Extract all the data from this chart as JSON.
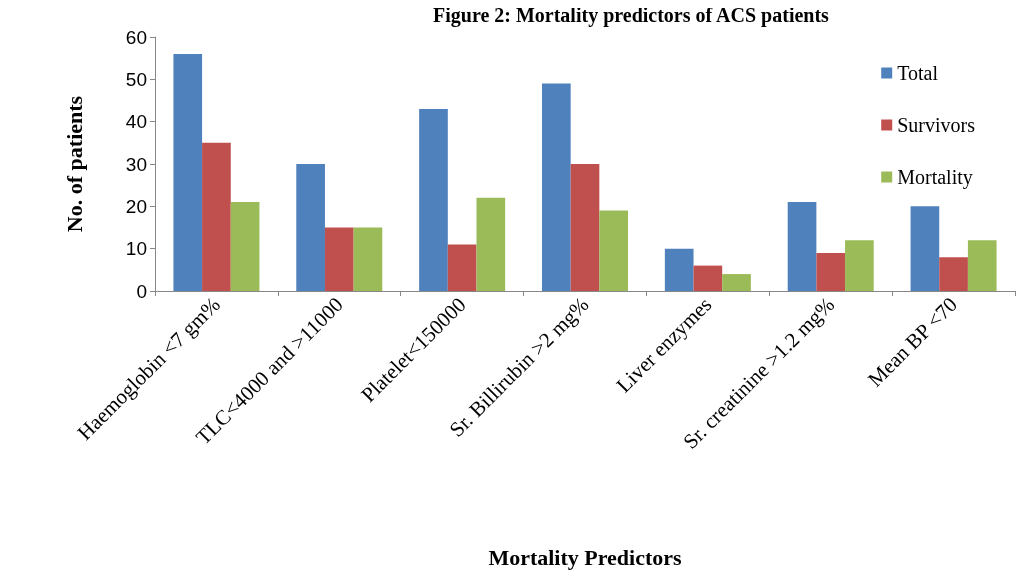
{
  "chart_data": {
    "type": "bar",
    "title": "Figure 2: Mortality predictors of ACS patients",
    "xlabel": "Mortality Predictors",
    "ylabel": "No. of patients",
    "categories": [
      "Haemoglobin <7 gm%",
      "TLC<4000 and >11000",
      "Platelet<150000",
      "Sr. Billirubin >2 mg%",
      "Liver enzymes",
      "Sr. creatinine >1.2 mg%",
      "Mean BP <70"
    ],
    "series": [
      {
        "name": "Total",
        "color": "#4f81bd",
        "values": [
          56,
          30,
          43,
          49,
          10,
          21,
          20
        ]
      },
      {
        "name": "Survivors",
        "color": "#c0504d",
        "values": [
          35,
          15,
          11,
          30,
          6,
          9,
          8
        ]
      },
      {
        "name": "Mortality",
        "color": "#9bbb59",
        "values": [
          21,
          15,
          22,
          19,
          4,
          12,
          12
        ]
      }
    ],
    "ylim": [
      0,
      60
    ],
    "yticks": [
      0,
      10,
      20,
      30,
      40,
      50,
      60
    ],
    "grid": false,
    "legend": "top right"
  }
}
